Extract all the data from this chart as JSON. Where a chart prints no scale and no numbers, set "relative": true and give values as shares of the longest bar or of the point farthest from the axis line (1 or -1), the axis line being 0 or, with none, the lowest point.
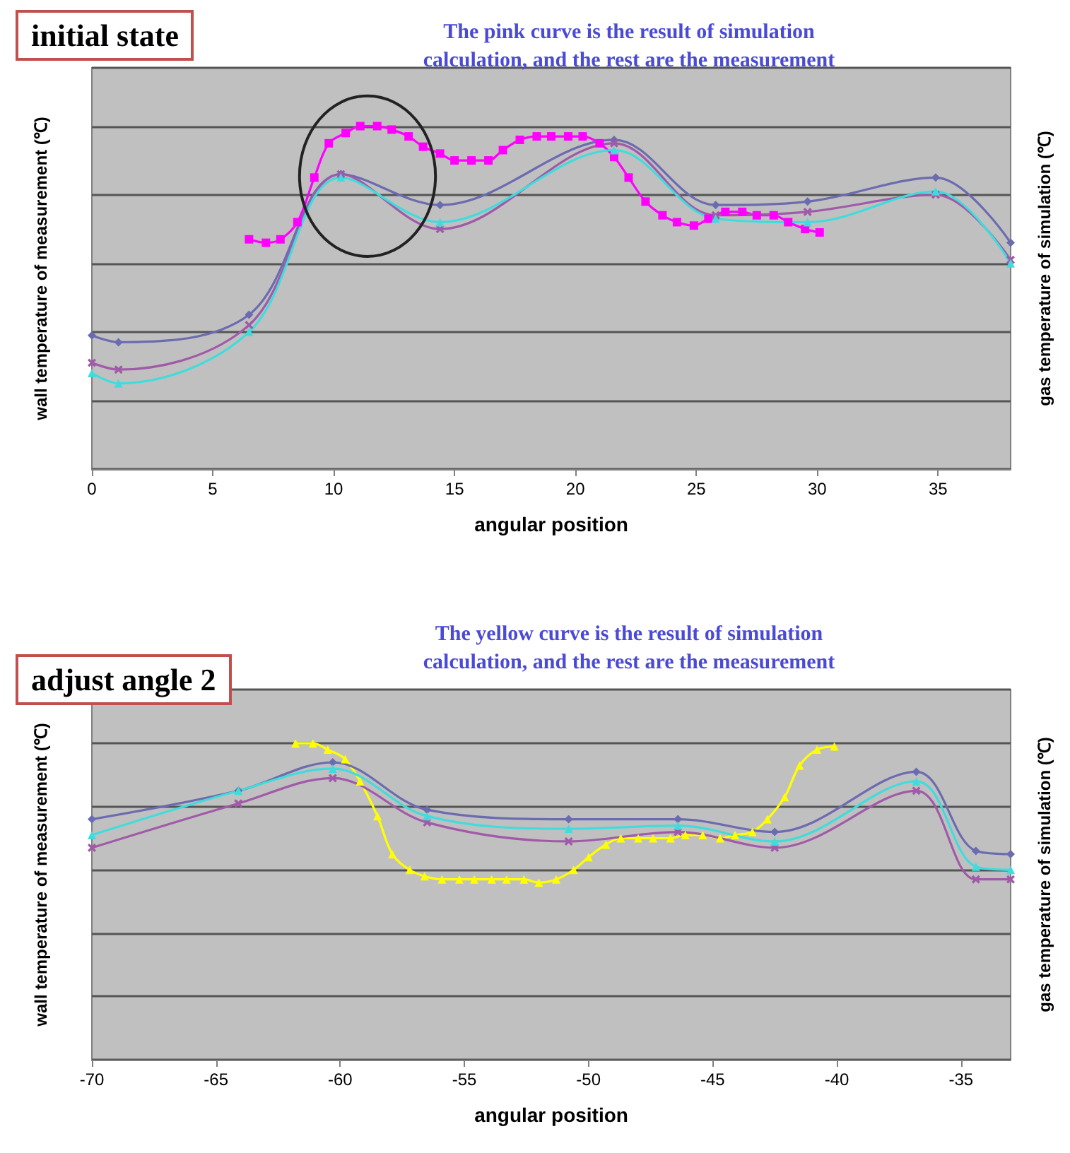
{
  "chart_data": [
    {
      "type": "line",
      "title": "initial state",
      "subtitle": "The pink curve is the result of simulation\ncalculation, and the rest are the measurement",
      "xlabel": "angular position",
      "ylabel": "wall temperature of measurement (℃)",
      "y2label": "gas temperature of simulation (℃)",
      "relative": true,
      "xlim": [
        0,
        38
      ],
      "xticks": [
        0,
        5,
        10,
        15,
        20,
        25,
        30,
        35
      ],
      "grid": "y",
      "line_style": "solid",
      "series": [
        {
          "color": "#ff00ff",
          "marker": "square",
          "x": [
            6.5,
            7.2,
            7.8,
            8.5,
            9.2,
            9.8,
            10.5,
            11.1,
            11.8,
            12.4,
            13.1,
            13.7,
            14.4,
            15.0,
            15.7,
            16.4,
            17.0,
            17.7,
            18.4,
            19.0,
            19.7,
            20.3,
            21.0,
            21.6,
            22.2,
            22.9,
            23.6,
            24.2,
            24.9,
            25.5,
            26.2,
            26.9,
            27.5,
            28.2,
            28.8,
            29.5,
            30.1
          ],
          "values": [
            0.67,
            0.66,
            0.67,
            0.72,
            0.85,
            0.95,
            0.98,
            1.0,
            1.0,
            0.99,
            0.97,
            0.94,
            0.92,
            0.9,
            0.9,
            0.9,
            0.93,
            0.96,
            0.97,
            0.97,
            0.97,
            0.97,
            0.95,
            0.91,
            0.85,
            0.78,
            0.74,
            0.72,
            0.71,
            0.73,
            0.75,
            0.75,
            0.74,
            0.74,
            0.72,
            0.7,
            0.69
          ]
        },
        {
          "color": "#6b6bb0",
          "marker": "diamond",
          "x": [
            0,
            1.1,
            6.5,
            10.3,
            14.4,
            21.6,
            25.8,
            29.6,
            34.9,
            38
          ],
          "values": [
            0.39,
            0.37,
            0.45,
            0.86,
            0.77,
            0.96,
            0.77,
            0.78,
            0.85,
            0.66
          ]
        },
        {
          "color": "#a05aa8",
          "marker": "cross",
          "x": [
            0,
            1.1,
            6.5,
            10.3,
            14.4,
            21.6,
            25.8,
            29.6,
            34.9,
            38
          ],
          "values": [
            0.31,
            0.29,
            0.42,
            0.86,
            0.7,
            0.95,
            0.74,
            0.75,
            0.8,
            0.61
          ]
        },
        {
          "color": "#40dcdc",
          "marker": "triangle",
          "x": [
            0,
            1.1,
            6.5,
            10.3,
            14.4,
            21.6,
            25.8,
            29.6,
            34.9,
            38
          ],
          "values": [
            0.28,
            0.25,
            0.4,
            0.85,
            0.72,
            0.93,
            0.73,
            0.72,
            0.81,
            0.6
          ]
        }
      ]
    },
    {
      "type": "line",
      "title": "adjust angle 2",
      "subtitle": "The yellow curve is the result of simulation\ncalculation, and the rest are the measurement",
      "xlabel": "angular position",
      "ylabel": "wall temperature of measurement (℃)",
      "y2label": "gas temperature of simulation (℃)",
      "relative": true,
      "xlim": [
        -70,
        -33
      ],
      "xticks": [
        -70,
        -65,
        -60,
        -55,
        -50,
        -45,
        -40,
        -35
      ],
      "grid": "y",
      "line_style": "solid",
      "series": [
        {
          "color": "#ffff00",
          "marker": "triangle",
          "x": [
            -61.8,
            -61.1,
            -60.5,
            -59.8,
            -59.2,
            -58.5,
            -57.9,
            -57.2,
            -56.6,
            -55.9,
            -55.2,
            -54.6,
            -53.9,
            -53.3,
            -52.6,
            -52.0,
            -51.3,
            -50.6,
            -50.0,
            -49.3,
            -48.7,
            -48.0,
            -47.4,
            -46.7,
            -46.1,
            -45.4,
            -44.7,
            -44.1,
            -43.4,
            -42.8,
            -42.1,
            -41.5,
            -40.8,
            -40.1
          ],
          "values": [
            1.0,
            1.0,
            0.98,
            0.95,
            0.88,
            0.77,
            0.65,
            0.6,
            0.58,
            0.57,
            0.57,
            0.57,
            0.57,
            0.57,
            0.57,
            0.56,
            0.57,
            0.6,
            0.64,
            0.68,
            0.7,
            0.7,
            0.7,
            0.7,
            0.71,
            0.71,
            0.7,
            0.71,
            0.72,
            0.76,
            0.83,
            0.93,
            0.98,
            0.99
          ]
        },
        {
          "color": "#6b6bb0",
          "marker": "diamond",
          "x": [
            -70,
            -64.1,
            -60.3,
            -56.5,
            -50.8,
            -46.4,
            -42.5,
            -36.8,
            -34.4,
            -33
          ],
          "values": [
            0.76,
            0.85,
            0.94,
            0.79,
            0.76,
            0.76,
            0.72,
            0.91,
            0.66,
            0.65
          ]
        },
        {
          "color": "#a05aa8",
          "marker": "cross",
          "x": [
            -70,
            -64.1,
            -60.3,
            -56.5,
            -50.8,
            -46.4,
            -42.5,
            -36.8,
            -34.4,
            -33
          ],
          "values": [
            0.67,
            0.81,
            0.89,
            0.75,
            0.69,
            0.72,
            0.67,
            0.85,
            0.57,
            0.57
          ]
        },
        {
          "color": "#40dcdc",
          "marker": "triangle",
          "x": [
            -70,
            -64.1,
            -60.3,
            -56.5,
            -50.8,
            -46.4,
            -42.5,
            -36.8,
            -34.4,
            -33
          ],
          "values": [
            0.71,
            0.85,
            0.92,
            0.77,
            0.73,
            0.74,
            0.69,
            0.88,
            0.61,
            0.6
          ]
        }
      ]
    }
  ]
}
